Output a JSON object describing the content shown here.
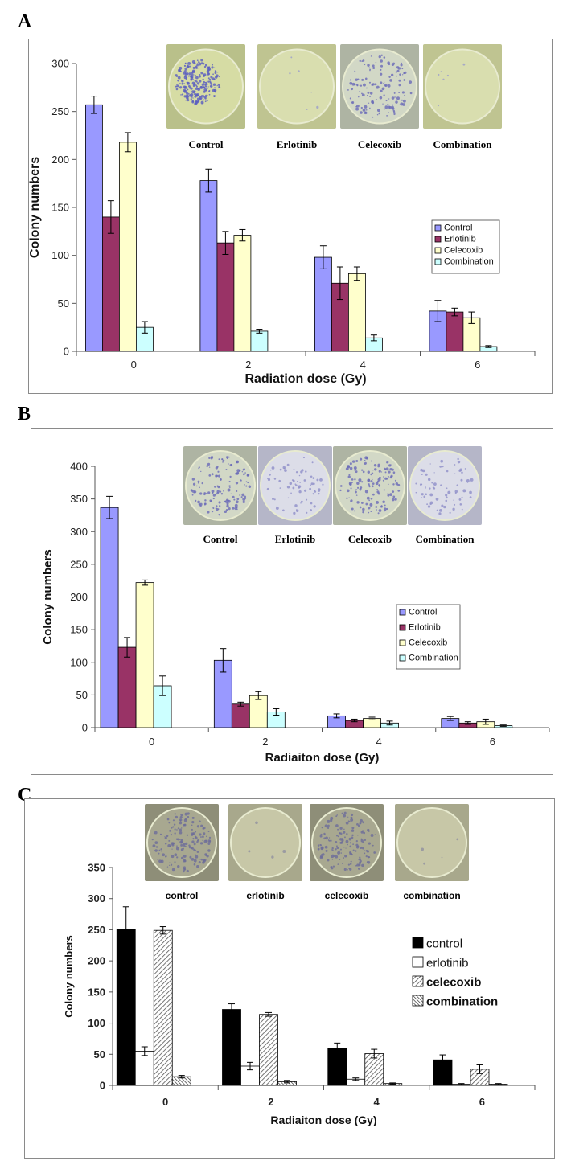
{
  "chart_data": [
    {
      "panel": "A",
      "type": "bar",
      "xlabel": "Radiation dose (Gy)",
      "ylabel": "Colony numbers",
      "categories": [
        "0",
        "2",
        "4",
        "6"
      ],
      "ylim": [
        0,
        300
      ],
      "yticks": [
        "0",
        "50",
        "100",
        "150",
        "200",
        "250",
        "300"
      ],
      "legend_position": "right",
      "series": [
        {
          "name": "Control",
          "color": "#9999ff",
          "values": [
            257,
            178,
            98,
            42
          ],
          "errors": [
            9,
            12,
            12,
            11
          ]
        },
        {
          "name": "Erlotinib",
          "color": "#993366",
          "values": [
            140,
            113,
            71,
            41
          ],
          "errors": [
            17,
            12,
            17,
            4
          ]
        },
        {
          "name": "Celecoxib",
          "color": "#ffffcc",
          "values": [
            218,
            121,
            81,
            35
          ],
          "errors": [
            10,
            6,
            7,
            6
          ]
        },
        {
          "name": "Combination",
          "color": "#ccffff",
          "values": [
            25,
            21,
            14,
            5
          ],
          "errors": [
            6,
            2,
            3,
            1
          ]
        }
      ],
      "photos": [
        {
          "label": "Control",
          "tone": "dense"
        },
        {
          "label": "Erlotinib",
          "tone": "clear"
        },
        {
          "label": "Celecoxib",
          "tone": "medium"
        },
        {
          "label": "Combination",
          "tone": "clear"
        }
      ]
    },
    {
      "panel": "B",
      "type": "bar",
      "xlabel": "Radiaiton dose (Gy)",
      "ylabel": "Colony numbers",
      "categories": [
        "0",
        "2",
        "4",
        "6"
      ],
      "ylim": [
        0,
        400
      ],
      "yticks": [
        "0",
        "50",
        "100",
        "150",
        "200",
        "250",
        "300",
        "350",
        "400"
      ],
      "legend_position": "right",
      "series": [
        {
          "name": "Control",
          "color": "#9999ff",
          "values": [
            337,
            103,
            18,
            14
          ],
          "errors": [
            17,
            18,
            3,
            3
          ]
        },
        {
          "name": "Erlotinib",
          "color": "#993366",
          "values": [
            123,
            36,
            11,
            7
          ],
          "errors": [
            15,
            3,
            2,
            2
          ]
        },
        {
          "name": "Celecoxib",
          "color": "#ffffcc",
          "values": [
            222,
            49,
            14,
            9
          ],
          "errors": [
            4,
            6,
            2,
            4
          ]
        },
        {
          "name": "Combination",
          "color": "#ccffff",
          "values": [
            64,
            24,
            7,
            3
          ],
          "errors": [
            15,
            5,
            3,
            1
          ]
        }
      ],
      "photos": [
        {
          "label": "Control",
          "tone": "medium"
        },
        {
          "label": "Erlotinib",
          "tone": "light"
        },
        {
          "label": "Celecoxib",
          "tone": "medium"
        },
        {
          "label": "Combination",
          "tone": "light"
        }
      ]
    },
    {
      "panel": "C",
      "type": "bar",
      "xlabel": "Radiaiton dose (Gy)",
      "ylabel": "Colony numbers",
      "categories": [
        "0",
        "2",
        "4",
        "6"
      ],
      "ylim": [
        0,
        350
      ],
      "yticks": [
        "0",
        "50",
        "100",
        "150",
        "200",
        "250",
        "300",
        "350"
      ],
      "legend_position": "right",
      "series": [
        {
          "name": "control",
          "color": "#000000",
          "pattern": "solid",
          "values": [
            251,
            122,
            59,
            41
          ],
          "errors": [
            36,
            9,
            9,
            8
          ]
        },
        {
          "name": "erlotinib",
          "color": "#ffffff",
          "pattern": "open",
          "values": [
            55,
            31,
            10,
            2
          ],
          "errors": [
            7,
            6,
            2,
            1
          ]
        },
        {
          "name": "celecoxib",
          "color": "#bbbbbb",
          "pattern": "hatch",
          "values": [
            249,
            114,
            51,
            26
          ],
          "errors": [
            6,
            3,
            7,
            7
          ]
        },
        {
          "name": "combination",
          "color": "#999999",
          "pattern": "hatch-dense",
          "values": [
            14,
            6,
            3,
            2
          ],
          "errors": [
            2,
            2,
            1,
            1
          ]
        }
      ],
      "photos": [
        {
          "label": "control",
          "tone": "medium-grey"
        },
        {
          "label": "erlotinib",
          "tone": "clear-grey"
        },
        {
          "label": "celecoxib",
          "tone": "medium-grey"
        },
        {
          "label": "combination",
          "tone": "clear-grey"
        }
      ]
    }
  ],
  "panel_letters": [
    "A",
    "B",
    "C"
  ]
}
